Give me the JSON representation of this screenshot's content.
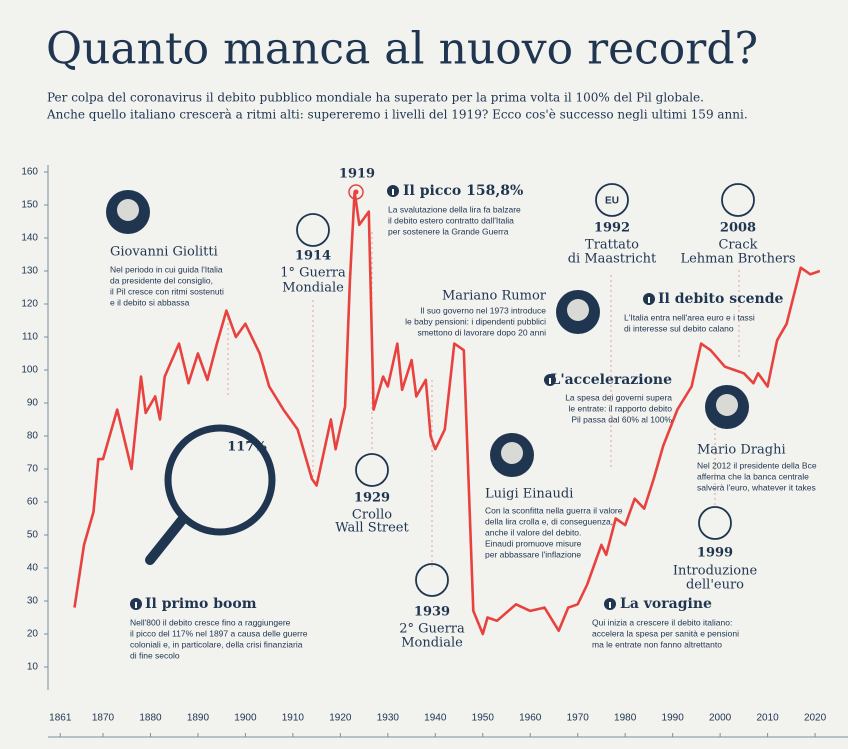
{
  "chart_data": {
    "type": "line",
    "title": "Quanto manca al nuovo record?",
    "subtitle": [
      "Per colpa del coronavirus il debito pubblico mondiale ha superato per la prima volta il 100% del Pil globale.",
      "Anche quello italiano crescerà a ritmi alti: supereremo i livelli del 1919? Ecco cos'è successo negli ultimi 159 anni."
    ],
    "color": "#e8423f",
    "x": [
      1864,
      1866,
      1868,
      1869,
      1870,
      1873,
      1876,
      1878,
      1879,
      1881,
      1882,
      1883,
      1886,
      1888,
      1890,
      1892,
      1894,
      1896,
      1898,
      1900,
      1903,
      1905,
      1908,
      1911,
      1914,
      1915,
      1918,
      1919,
      1921,
      1922,
      1923,
      1924,
      1926,
      1927,
      1929,
      1930,
      1932,
      1933,
      1935,
      1936,
      1938,
      1939,
      1940,
      1942,
      1944,
      1946,
      1947,
      1948,
      1950,
      1951,
      1953,
      1957,
      1960,
      1963,
      1966,
      1968,
      1970,
      1972,
      1975,
      1976,
      1978,
      1980,
      1982,
      1984,
      1986,
      1988,
      1991,
      1994,
      1996,
      1998,
      2001,
      2003,
      2005,
      2007,
      2008,
      2010,
      2012,
      2014,
      2017,
      2019,
      2021
    ],
    "values": [
      28,
      47,
      57,
      73,
      73,
      88,
      70,
      98,
      87,
      92,
      85,
      98,
      108,
      96,
      105,
      97,
      108,
      118,
      110,
      114,
      105,
      95,
      88,
      82,
      67,
      65,
      85,
      76,
      89,
      127,
      154,
      144,
      148,
      88,
      98,
      95,
      108,
      94,
      103,
      92,
      97,
      80,
      76,
      82,
      108,
      106,
      67,
      27,
      20,
      25,
      24,
      29,
      27,
      28,
      21,
      28,
      29,
      35,
      47,
      44,
      55,
      53,
      61,
      58,
      67,
      77,
      88,
      95,
      108,
      106,
      101,
      100,
      99,
      96,
      99,
      95,
      109,
      114,
      131,
      129,
      130
    ],
    "xlim": [
      1855,
      2025
    ],
    "xticks": [
      1861,
      1870,
      1880,
      1890,
      1900,
      1910,
      1920,
      1930,
      1940,
      1950,
      1960,
      1970,
      1980,
      1990,
      2000,
      2010,
      2020
    ],
    "ylim": [
      10,
      160
    ],
    "yticks": [
      10,
      20,
      30,
      40,
      50,
      60,
      70,
      80,
      90,
      100,
      110,
      120,
      130,
      140,
      150,
      160
    ],
    "annotations": [
      {
        "heading": "Giovanni Giolitti",
        "text": [
          "Nel periodo in cui guida l'Italia",
          "da presidente del consiglio,",
          "il Pil cresce con ritmi sostenuti",
          "e il debito si abbassa"
        ]
      },
      {
        "heading": "1914",
        "text": [
          "1° Guerra",
          "Mondiale"
        ]
      },
      {
        "heading": "1919"
      },
      {
        "heading": "Il picco 158,8%",
        "text": [
          "La svalutazione della lira fa balzare",
          "il debito estero contratto dall'Italia",
          "per sostenere la Grande Guerra"
        ]
      },
      {
        "heading": "1929",
        "text": [
          "Crollo",
          "Wall Street"
        ]
      },
      {
        "heading": "1939",
        "text": [
          "2° Guerra",
          "Mondiale"
        ]
      },
      {
        "heading": "Mariano Rumor",
        "text": [
          "Il suo governo nel 1973 introduce",
          "le baby pensioni: i dipendenti pubblici",
          "smettono di lavorare dopo 20 anni"
        ]
      },
      {
        "heading": "Luigi Einaudi",
        "text": [
          "Con la sconfitta nella guerra il valore",
          "della lira crolla e, di conseguenza,",
          "anche il valore del debito.",
          "Einaudi promuove misure",
          "per abbassare l'inflazione"
        ]
      },
      {
        "heading": "1992",
        "text": [
          "Trattato",
          "di Maastricht"
        ]
      },
      {
        "heading": "L'accelerazione",
        "text": [
          "La spesa dei governi supera",
          "le entrate: il rapporto debito",
          "Pil passa dal 60% al 100%"
        ]
      },
      {
        "heading": "2008",
        "text": [
          "Crack",
          "Lehman Brothers"
        ]
      },
      {
        "heading": "Il debito scende",
        "text": [
          "L'Italia entra nell'area euro e i tassi",
          "di interesse sul debito calano"
        ]
      },
      {
        "heading": "Mario Draghi",
        "text": [
          "Nel 2012 il presidente della Bce",
          "afferma che la banca centrale",
          "salverà l'euro, whatever it takes"
        ]
      },
      {
        "heading": "1999",
        "text": [
          "Introduzione",
          "dell'euro"
        ]
      },
      {
        "heading": "La voragine",
        "text": [
          "Qui inizia a crescere il debito italiano:",
          "accelera la spesa per sanità e pensioni",
          "ma le entrate non fanno altrettanto"
        ]
      },
      {
        "heading": "Il primo boom",
        "text": [
          "Nell'800 il debito cresce fino a raggiungere",
          "il picco del 117% nel 1897 a causa delle guerre",
          "coloniali e, in particolare, della crisi finanziaria",
          "di fine secolo"
        ]
      },
      {
        "heading": "117%"
      }
    ],
    "icons": [
      "EU"
    ]
  }
}
